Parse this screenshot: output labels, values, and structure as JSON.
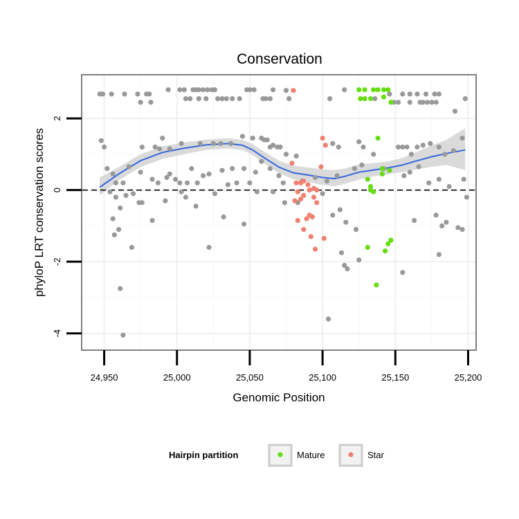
{
  "chart_data": {
    "type": "scatter",
    "title": "Conservation",
    "xlabel": "Genomic Position",
    "ylabel": "phyloP LRT conservation scores",
    "xlim": [
      24935,
      25205
    ],
    "ylim": [
      -4.45,
      3.2
    ],
    "xticks": [
      24950,
      25000,
      25050,
      25100,
      25150,
      25200
    ],
    "xtick_labels": [
      "24,950",
      "25,000",
      "25,050",
      "25,100",
      "25,150",
      "25,200"
    ],
    "yticks": [
      -4,
      -2,
      0,
      2
    ],
    "ytick_labels": [
      "-4",
      "-2",
      "0",
      "2"
    ],
    "reference_line": 0,
    "grid": true,
    "legend": {
      "title": "Hairpin partition",
      "position": "bottom",
      "entries": [
        {
          "label": "Mature",
          "color": "#66dd11"
        },
        {
          "label": "Star",
          "color": "#f08070"
        }
      ]
    },
    "colors": {
      "other": "#999999",
      "mature": "#66dd11",
      "star": "#f08070",
      "smooth": "#3366dd",
      "band": "#d3d3d3"
    },
    "series": [
      {
        "name": "Other",
        "points": [
          [
            24947,
            2.68
          ],
          [
            24949,
            2.68
          ],
          [
            24955,
            2.68
          ],
          [
            24964,
            2.68
          ],
          [
            24973,
            2.68
          ],
          [
            24979,
            2.68
          ],
          [
            24981,
            2.68
          ],
          [
            24994,
            2.8
          ],
          [
            25002,
            2.8
          ],
          [
            25005,
            2.8
          ],
          [
            25011,
            2.8
          ],
          [
            25013,
            2.8
          ],
          [
            25015,
            2.8
          ],
          [
            25018,
            2.8
          ],
          [
            25021,
            2.8
          ],
          [
            25024,
            2.8
          ],
          [
            25026,
            2.8
          ],
          [
            25048,
            2.8
          ],
          [
            25050,
            2.8
          ],
          [
            25053,
            2.8
          ],
          [
            25066,
            2.8
          ],
          [
            25075,
            2.78
          ],
          [
            25115,
            2.8
          ],
          [
            24975,
            2.45
          ],
          [
            24982,
            2.45
          ],
          [
            25006,
            2.55
          ],
          [
            25009,
            2.55
          ],
          [
            25015,
            2.55
          ],
          [
            25020,
            2.55
          ],
          [
            25028,
            2.55
          ],
          [
            25031,
            2.55
          ],
          [
            25034,
            2.55
          ],
          [
            25038,
            2.55
          ],
          [
            25043,
            2.55
          ],
          [
            25059,
            2.55
          ],
          [
            25061,
            2.55
          ],
          [
            25064,
            2.55
          ],
          [
            25077,
            2.55
          ],
          [
            25105,
            2.55
          ],
          [
            25136,
            2.55
          ],
          [
            25146,
            2.68
          ],
          [
            25155,
            2.68
          ],
          [
            25160,
            2.68
          ],
          [
            25165,
            2.68
          ],
          [
            25171,
            2.68
          ],
          [
            25177,
            2.68
          ],
          [
            25180,
            2.68
          ],
          [
            25198,
            2.55
          ],
          [
            25149,
            2.45
          ],
          [
            25152,
            2.45
          ],
          [
            25160,
            2.45
          ],
          [
            25167,
            2.45
          ],
          [
            25169,
            2.45
          ],
          [
            25172,
            2.45
          ],
          [
            25175,
            2.45
          ],
          [
            25178,
            2.45
          ],
          [
            25191,
            2.2
          ],
          [
            24948,
            1.38
          ],
          [
            24950,
            1.2
          ],
          [
            24976,
            1.2
          ],
          [
            24985,
            1.2
          ],
          [
            24988,
            1.15
          ],
          [
            24995,
            1.15
          ],
          [
            24990,
            1.45
          ],
          [
            25003,
            1.3
          ],
          [
            25016,
            1.3
          ],
          [
            25025,
            1.3
          ],
          [
            25030,
            1.3
          ],
          [
            25037,
            1.3
          ],
          [
            25045,
            1.5
          ],
          [
            25052,
            1.45
          ],
          [
            25058,
            1.45
          ],
          [
            25060,
            1.4
          ],
          [
            25062,
            1.4
          ],
          [
            25064,
            1.2
          ],
          [
            25066,
            1.25
          ],
          [
            25069,
            1.2
          ],
          [
            25071,
            1.2
          ],
          [
            25075,
            1.0
          ],
          [
            25082,
            0.95
          ],
          [
            25107,
            1.3
          ],
          [
            25111,
            1.2
          ],
          [
            25125,
            1.35
          ],
          [
            25128,
            1.2
          ],
          [
            25135,
            1.0
          ],
          [
            25152,
            1.2
          ],
          [
            25155,
            1.2
          ],
          [
            25158,
            1.2
          ],
          [
            25161,
            1.0
          ],
          [
            25165,
            1.2
          ],
          [
            25169,
            1.25
          ],
          [
            25174,
            1.3
          ],
          [
            25180,
            1.2
          ],
          [
            25184,
            1.0
          ],
          [
            25190,
            1.1
          ],
          [
            25196,
            1.45
          ],
          [
            24952,
            0.6
          ],
          [
            24956,
            0.45
          ],
          [
            24958,
            0.2
          ],
          [
            24963,
            0.2
          ],
          [
            24967,
            0.65
          ],
          [
            24975,
            0.5
          ],
          [
            24983,
            0.3
          ],
          [
            24987,
            0.2
          ],
          [
            24993,
            0.35
          ],
          [
            24995,
            0.45
          ],
          [
            24999,
            0.3
          ],
          [
            25002,
            0.2
          ],
          [
            25007,
            0.2
          ],
          [
            25010,
            0.6
          ],
          [
            25014,
            0.2
          ],
          [
            25018,
            0.4
          ],
          [
            25022,
            0.45
          ],
          [
            25031,
            0.55
          ],
          [
            25035,
            0.15
          ],
          [
            25038,
            0.6
          ],
          [
            25041,
            0.2
          ],
          [
            25046,
            0.6
          ],
          [
            25050,
            0.2
          ],
          [
            25054,
            0.5
          ],
          [
            25058,
            0.8
          ],
          [
            25064,
            0.6
          ],
          [
            25070,
            0.4
          ],
          [
            25073,
            0.2
          ],
          [
            25086,
            0.25
          ],
          [
            25095,
            0.35
          ],
          [
            25103,
            0.25
          ],
          [
            25110,
            0.4
          ],
          [
            25122,
            0.6
          ],
          [
            25127,
            0.7
          ],
          [
            25142,
            0.6
          ],
          [
            25156,
            0.4
          ],
          [
            25160,
            0.5
          ],
          [
            25166,
            0.65
          ],
          [
            25173,
            0.2
          ],
          [
            25180,
            0.3
          ],
          [
            25187,
            0.1
          ],
          [
            25197,
            0.3
          ],
          [
            24954,
            -0.05
          ],
          [
            24958,
            -0.2
          ],
          [
            24961,
            -0.5
          ],
          [
            24965,
            -0.15
          ],
          [
            24970,
            -0.1
          ],
          [
            24974,
            -0.35
          ],
          [
            24976,
            -0.35
          ],
          [
            24992,
            -0.3
          ],
          [
            25003,
            -0.05
          ],
          [
            25006,
            -0.2
          ],
          [
            25013,
            -0.45
          ],
          [
            25026,
            -0.1
          ],
          [
            25032,
            -0.75
          ],
          [
            25046,
            -0.95
          ],
          [
            25055,
            -0.05
          ],
          [
            25066,
            -0.05
          ],
          [
            25074,
            -0.35
          ],
          [
            25083,
            -0.35
          ],
          [
            25100,
            -0.1
          ],
          [
            25107,
            -0.7
          ],
          [
            25112,
            -0.55
          ],
          [
            25116,
            -0.9
          ],
          [
            25123,
            -1.1
          ],
          [
            25163,
            -0.85
          ],
          [
            25178,
            -0.7
          ],
          [
            25182,
            -1.0
          ],
          [
            25185,
            -0.9
          ],
          [
            25193,
            -1.05
          ],
          [
            25196,
            -1.1
          ],
          [
            25199,
            -0.2
          ],
          [
            24956,
            -0.8
          ],
          [
            24957,
            -1.25
          ],
          [
            24960,
            -1.1
          ],
          [
            24969,
            -1.6
          ],
          [
            24983,
            -0.85
          ],
          [
            25022,
            -1.6
          ],
          [
            25113,
            -1.75
          ],
          [
            25115,
            -2.1
          ],
          [
            25117,
            -2.2
          ],
          [
            25125,
            -1.95
          ],
          [
            25155,
            -2.3
          ],
          [
            25180,
            -1.8
          ],
          [
            24961,
            -2.75
          ],
          [
            24963,
            -4.05
          ],
          [
            25104,
            -3.6
          ]
        ]
      },
      {
        "name": "Mature",
        "points": [
          [
            25125,
            2.8
          ],
          [
            25129,
            2.8
          ],
          [
            25135,
            2.8
          ],
          [
            25138,
            2.8
          ],
          [
            25142,
            2.8
          ],
          [
            25145,
            2.8
          ],
          [
            25126,
            2.55
          ],
          [
            25129,
            2.55
          ],
          [
            25133,
            2.55
          ],
          [
            25142,
            2.6
          ],
          [
            25147,
            2.45
          ],
          [
            25138,
            1.45
          ],
          [
            25141,
            0.6
          ],
          [
            25141,
            0.45
          ],
          [
            25146,
            0.55
          ],
          [
            25131,
            0.3
          ],
          [
            25133,
            0.1
          ],
          [
            25133,
            0.0
          ],
          [
            25135,
            -0.05
          ],
          [
            25131,
            -1.6
          ],
          [
            25143,
            -1.7
          ],
          [
            25145,
            -1.5
          ],
          [
            25147,
            -1.4
          ],
          [
            25137,
            -2.65
          ]
        ]
      },
      {
        "name": "Star",
        "points": [
          [
            25080,
            2.78
          ],
          [
            25079,
            0.75
          ],
          [
            25082,
            0.2
          ],
          [
            25085,
            0.2
          ],
          [
            25087,
            0.25
          ],
          [
            25090,
            0.15
          ],
          [
            25083,
            -0.05
          ],
          [
            25085,
            -0.25
          ],
          [
            25081,
            -0.3
          ],
          [
            25087,
            -0.15
          ],
          [
            25091,
            0.0
          ],
          [
            25094,
            0.05
          ],
          [
            25096,
            0.0
          ],
          [
            25099,
            0.65
          ],
          [
            25100,
            1.45
          ],
          [
            25102,
            1.25
          ],
          [
            25094,
            -0.2
          ],
          [
            25096,
            -0.35
          ],
          [
            25083,
            -0.85
          ],
          [
            25089,
            -0.8
          ],
          [
            25091,
            -0.7
          ],
          [
            25093,
            -0.75
          ],
          [
            25087,
            -1.1
          ],
          [
            25092,
            -1.3
          ],
          [
            25095,
            -1.65
          ],
          [
            25101,
            -1.35
          ]
        ]
      }
    ],
    "smooth": {
      "method": "loess",
      "x": [
        24947,
        24960,
        24975,
        24990,
        25005,
        25020,
        25035,
        25045,
        25052,
        25060,
        25070,
        25080,
        25090,
        25100,
        25108,
        25115,
        25125,
        25135,
        25145,
        25155,
        25165,
        25175,
        25185,
        25198
      ],
      "y": [
        0.08,
        0.45,
        0.82,
        1.05,
        1.17,
        1.26,
        1.3,
        1.25,
        1.12,
        0.9,
        0.64,
        0.48,
        0.42,
        0.35,
        0.32,
        0.38,
        0.5,
        0.56,
        0.62,
        0.7,
        0.82,
        0.93,
        1.02,
        1.12
      ],
      "lower": [
        -0.15,
        0.28,
        0.64,
        0.87,
        1.0,
        1.12,
        1.16,
        1.12,
        0.98,
        0.74,
        0.47,
        0.3,
        0.22,
        0.15,
        0.1,
        0.17,
        0.29,
        0.38,
        0.44,
        0.5,
        0.58,
        0.65,
        0.7,
        0.56
      ],
      "upper": [
        0.35,
        0.64,
        1.0,
        1.22,
        1.33,
        1.41,
        1.45,
        1.4,
        1.28,
        1.07,
        0.82,
        0.68,
        0.63,
        0.58,
        0.56,
        0.6,
        0.72,
        0.75,
        0.8,
        0.9,
        1.07,
        1.25,
        1.4,
        1.73
      ]
    }
  }
}
